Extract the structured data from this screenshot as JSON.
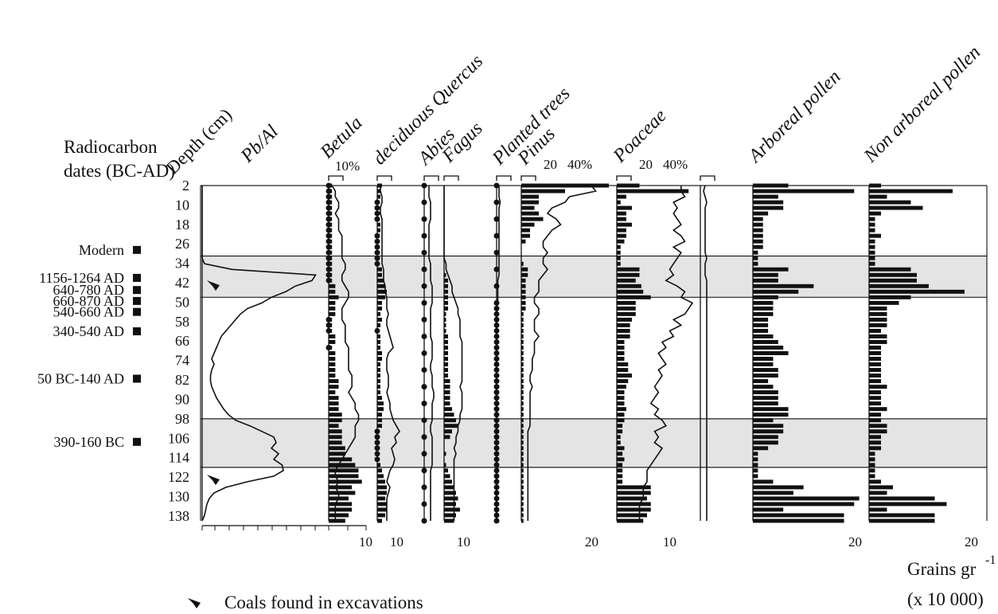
{
  "chart_data": {
    "type": "pollen-diagram",
    "header_left": [
      "Radiocarbon",
      "dates (BC-AD)"
    ],
    "depth_label": "Depth (cm)",
    "depth_ticks": [
      2,
      10,
      18,
      26,
      34,
      42,
      50,
      58,
      66,
      74,
      82,
      90,
      98,
      106,
      114,
      122,
      130,
      138
    ],
    "radiocarbon_dates": [
      {
        "label": "Modern",
        "depth": 28.5
      },
      {
        "label": "1156-1264 AD",
        "depth": 40
      },
      {
        "label": "640-780 AD",
        "depth": 45
      },
      {
        "label": "660-870 AD",
        "depth": 49.5
      },
      {
        "label": "540-660 AD",
        "depth": 54
      },
      {
        "label": "340-540 AD",
        "depth": 62
      },
      {
        "label": "50 BC-140 AD",
        "depth": 81.5
      },
      {
        "label": "390-160 BC",
        "depth": 107.5
      }
    ],
    "shaded_zones": [
      [
        31,
        48
      ],
      [
        98,
        118
      ]
    ],
    "coal_depths": [
      43,
      123
    ],
    "legend_text": "Coals found in excavations",
    "units_text": [
      "Grains gr",
      "(x 10 000)"
    ],
    "units_superscript": "-1",
    "panels": [
      {
        "name": "Pb/Al",
        "type": "curve",
        "scale_labels": [],
        "values": [
          0,
          0,
          0,
          0,
          0,
          0,
          0,
          0,
          0,
          0,
          0,
          0,
          0,
          0,
          2,
          25,
          95,
          92,
          78,
          70,
          58,
          50,
          38,
          32,
          28,
          24,
          20,
          16,
          14,
          12,
          10,
          8,
          10,
          8,
          7,
          7,
          8,
          10,
          12,
          15,
          18,
          22,
          28,
          40,
          50,
          60,
          62,
          58,
          64,
          60,
          67,
          68,
          60,
          38,
          20,
          10,
          6,
          4,
          3,
          2,
          0
        ]
      },
      {
        "name": "Betula",
        "type": "bars",
        "scale_labels": [
          "10%",
          "10"
        ],
        "values": [
          1,
          1,
          1,
          1,
          1,
          1,
          1,
          1,
          1,
          1,
          1,
          1,
          1,
          1,
          1,
          1,
          1,
          1,
          2,
          2,
          3,
          2,
          2,
          2,
          1,
          1,
          1,
          2,
          2,
          1,
          2,
          2,
          2,
          2,
          2,
          3,
          3,
          2,
          3,
          3,
          3,
          4,
          4,
          3,
          4,
          4,
          4,
          5,
          5,
          7,
          8,
          9,
          9,
          10,
          7,
          8,
          6,
          7,
          7,
          6,
          5
        ],
        "curve": [
          1,
          2,
          2,
          3,
          3,
          2,
          3,
          3,
          3,
          4,
          4,
          4,
          4,
          4,
          5,
          5,
          4,
          4,
          5,
          6,
          6,
          5,
          4,
          4,
          4,
          5,
          5,
          5,
          5,
          6,
          6,
          6,
          6,
          6,
          7,
          7,
          7,
          6,
          7,
          8,
          8,
          9,
          9,
          8,
          8,
          8,
          7,
          6,
          5,
          4,
          3,
          2,
          2,
          3,
          2,
          3,
          3,
          2,
          2,
          2,
          2
        ]
      },
      {
        "name": "deciduous Quercus",
        "type": "bars",
        "scale_labels": [
          "10"
        ],
        "values": [
          3,
          2,
          2,
          1,
          1,
          1,
          1,
          2,
          2,
          1,
          0,
          0,
          0,
          0,
          0,
          3,
          3,
          4,
          5,
          6,
          5,
          3,
          3,
          2,
          3,
          2,
          1,
          2,
          2,
          2,
          3,
          3,
          2,
          2,
          2,
          2,
          2,
          2,
          3,
          4,
          4,
          3,
          3,
          3,
          1,
          1,
          0,
          1,
          0,
          1,
          2,
          3,
          4,
          5,
          6,
          6,
          5,
          6,
          6,
          5,
          3
        ],
        "curve": [
          2,
          2,
          3,
          3,
          2,
          2,
          3,
          3,
          3,
          3,
          3,
          3,
          3,
          3,
          3,
          4,
          4,
          4,
          5,
          5,
          6,
          6,
          6,
          7,
          6,
          6,
          7,
          8,
          9,
          10,
          7,
          6,
          6,
          6,
          7,
          7,
          7,
          6,
          7,
          8,
          8,
          9,
          10,
          12,
          14,
          11,
          12,
          9,
          10,
          11,
          10,
          8,
          7,
          6,
          8,
          7,
          6,
          6,
          6,
          6,
          6
        ]
      },
      {
        "name": "Abies",
        "type": "dots-curve",
        "scale_labels": [],
        "curve": [
          3,
          3,
          3,
          4,
          4,
          4,
          4,
          3,
          3,
          3,
          3,
          3,
          3,
          3,
          4,
          4,
          4,
          4,
          5,
          5,
          5,
          5,
          4,
          4,
          4,
          4,
          4,
          4,
          5,
          5,
          5,
          5,
          4,
          4,
          5,
          5,
          5,
          6,
          6,
          5,
          5,
          5,
          5,
          4,
          4,
          5,
          5,
          5,
          5,
          5,
          5,
          4,
          4,
          4,
          4,
          4,
          4,
          4,
          4,
          4,
          4
        ]
      },
      {
        "name": "Fagus",
        "type": "bars",
        "scale_labels": [
          "10"
        ],
        "values": [
          0,
          0,
          0,
          0,
          0,
          0,
          0,
          0,
          0,
          0,
          0,
          0,
          0,
          0,
          0,
          0,
          1,
          2,
          2,
          2,
          2,
          2,
          2,
          1,
          1,
          1,
          1,
          2,
          2,
          2,
          2,
          2,
          2,
          2,
          2,
          3,
          3,
          3,
          3,
          3,
          4,
          5,
          6,
          7,
          4,
          3,
          0,
          0,
          1,
          0,
          1,
          2,
          3,
          4,
          5,
          6,
          7,
          6,
          8,
          6,
          5
        ],
        "curve": [
          0,
          0,
          0,
          0,
          0,
          0,
          0,
          0,
          0,
          0,
          0,
          0,
          0,
          0,
          1,
          1,
          2,
          3,
          4,
          4,
          5,
          6,
          7,
          7,
          8,
          8,
          8,
          8,
          9,
          9,
          9,
          9,
          9,
          9,
          9,
          9,
          8,
          9,
          9,
          9,
          9,
          8,
          8,
          7,
          7,
          6,
          6,
          5,
          6,
          5,
          5,
          5,
          5,
          5,
          5,
          5,
          5,
          5,
          5,
          5,
          5
        ]
      },
      {
        "name": "Planted trees",
        "type": "dots-curve",
        "scale_labels": [],
        "curve": [
          2,
          2,
          2,
          3,
          2,
          2,
          2,
          2,
          2,
          2,
          2,
          2,
          2,
          2,
          2,
          2,
          2,
          1,
          1,
          1,
          1,
          1,
          0,
          0,
          0,
          0,
          0,
          0,
          0,
          0,
          0,
          0,
          0,
          0,
          0,
          0,
          0,
          0,
          0,
          0,
          0,
          0,
          0,
          0,
          0,
          0,
          0,
          0,
          0,
          0,
          0,
          0,
          0,
          0,
          0,
          0,
          0,
          0,
          0,
          0,
          0
        ]
      },
      {
        "name": "Pinus",
        "type": "bars",
        "scale_labels": [
          "20",
          "40%",
          "20"
        ],
        "values": [
          40,
          20,
          8,
          8,
          6,
          8,
          10,
          6,
          4,
          4,
          2,
          0,
          0,
          0,
          1,
          3,
          3,
          2,
          2,
          2,
          2,
          2,
          2,
          1,
          1,
          1,
          1,
          1,
          1,
          1,
          1,
          1,
          1,
          1,
          1,
          1,
          1,
          1,
          1,
          1,
          1,
          1,
          1,
          1,
          1,
          1,
          1,
          1,
          1,
          1,
          1,
          1,
          1,
          1,
          1,
          1,
          1,
          1,
          1,
          1,
          1
        ],
        "curve": [
          32,
          34,
          22,
          20,
          14,
          12,
          16,
          18,
          14,
          12,
          10,
          10,
          12,
          10,
          10,
          12,
          10,
          8,
          8,
          8,
          6,
          6,
          8,
          8,
          6,
          6,
          6,
          8,
          6,
          6,
          6,
          5,
          5,
          5,
          4,
          4,
          5,
          4,
          4,
          4,
          4,
          4,
          4,
          4,
          3,
          3,
          3,
          3,
          3,
          3,
          3,
          3,
          3,
          3,
          3,
          3,
          3,
          3,
          3,
          3,
          3
        ]
      },
      {
        "name": "Poaceae",
        "type": "bars",
        "scale_labels": [
          "20",
          "40%",
          "10"
        ],
        "values": [
          12,
          38,
          5,
          2,
          8,
          5,
          5,
          8,
          5,
          5,
          4,
          2,
          2,
          2,
          2,
          12,
          12,
          10,
          13,
          14,
          18,
          10,
          10,
          10,
          8,
          7,
          7,
          7,
          4,
          4,
          4,
          4,
          6,
          6,
          8,
          6,
          5,
          4,
          4,
          4,
          5,
          4,
          4,
          3,
          3,
          2,
          2,
          4,
          3,
          4,
          3,
          3,
          3,
          3,
          18,
          18,
          16,
          18,
          18,
          16,
          14
        ],
        "curve": [
          34,
          34,
          36,
          30,
          32,
          30,
          32,
          34,
          30,
          34,
          36,
          30,
          34,
          32,
          30,
          28,
          30,
          26,
          32,
          36,
          34,
          40,
          38,
          36,
          30,
          34,
          28,
          30,
          24,
          26,
          22,
          24,
          26,
          22,
          24,
          22,
          20,
          22,
          20,
          18,
          22,
          20,
          24,
          26,
          20,
          22,
          20,
          24,
          22,
          20,
          18,
          16,
          16,
          16,
          14,
          14,
          14,
          12,
          12,
          12,
          12
        ]
      },
      {
        "name": "",
        "type": "curve",
        "scale_labels": [],
        "values": [
          3,
          2,
          3,
          4,
          3,
          3,
          3,
          3,
          3,
          3,
          3,
          3,
          3,
          4,
          3,
          3,
          3,
          4,
          4,
          4,
          4,
          4,
          4,
          4,
          4,
          4,
          4,
          4,
          4,
          4,
          4,
          4,
          4,
          4,
          4,
          4,
          4,
          4,
          4,
          4,
          4,
          4,
          4,
          4,
          4,
          4,
          4,
          4,
          4,
          4,
          4,
          4,
          4,
          4,
          4,
          4,
          4,
          4,
          4,
          4,
          4
        ]
      },
      {
        "name": "Arboreal pollen",
        "type": "bars",
        "scale_labels": [
          "20"
        ],
        "values": [
          7,
          20,
          5,
          6,
          6,
          3,
          2,
          2,
          2,
          2,
          2,
          2,
          1,
          1,
          1,
          7,
          5,
          5,
          12,
          9,
          5,
          4,
          4,
          4,
          3,
          3,
          3,
          4,
          5,
          6,
          7,
          4,
          4,
          5,
          5,
          3,
          4,
          5,
          5,
          5,
          7,
          7,
          4,
          6,
          6,
          5,
          5,
          3,
          1,
          1,
          1,
          1,
          1,
          4,
          10,
          8,
          21,
          20,
          6,
          18,
          18
        ],
        "curve": []
      },
      {
        "name": "Non arboreal pollen",
        "type": "bars",
        "scale_labels": [
          "20"
        ],
        "values": [
          2,
          14,
          3,
          7,
          9,
          2,
          1,
          1,
          1,
          2,
          1,
          1,
          1,
          1,
          1,
          7,
          8,
          8,
          10,
          16,
          7,
          5,
          3,
          3,
          3,
          3,
          2,
          3,
          3,
          2,
          2,
          2,
          2,
          2,
          2,
          2,
          3,
          2,
          2,
          2,
          3,
          2,
          2,
          3,
          3,
          2,
          2,
          2,
          1,
          1,
          1,
          1,
          1,
          2,
          4,
          3,
          11,
          13,
          3,
          11,
          11
        ],
        "curve": []
      }
    ]
  }
}
